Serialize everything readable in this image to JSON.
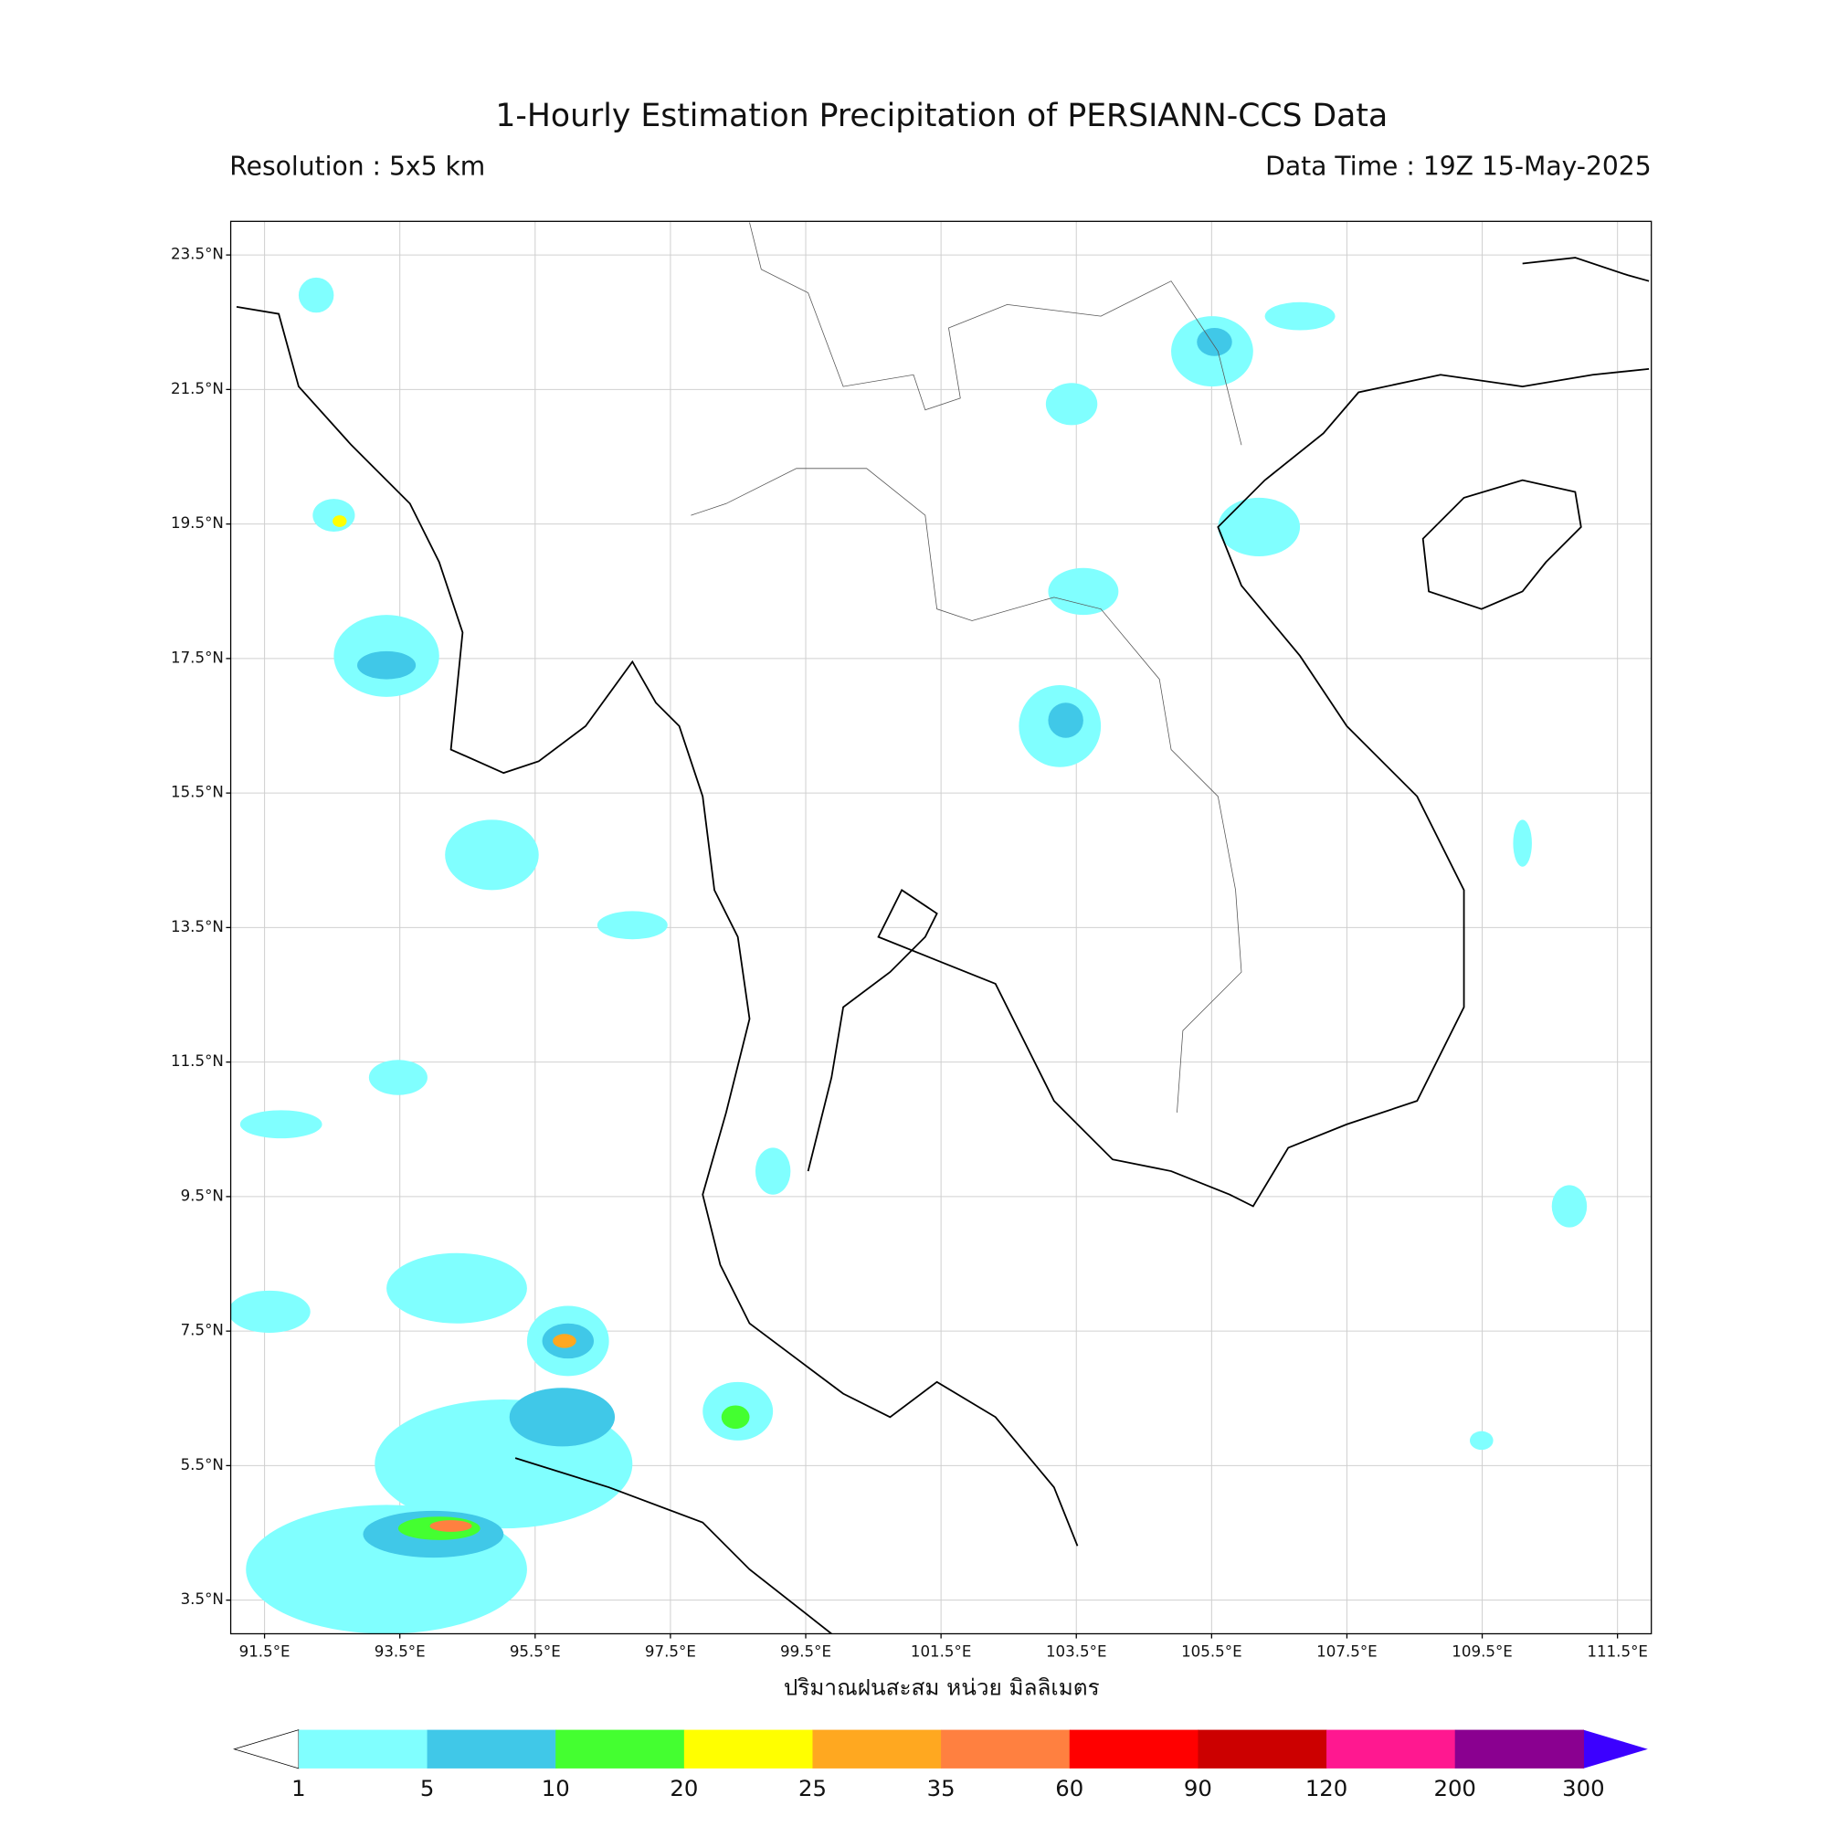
{
  "title": "1-Hourly Estimation Precipitation of PERSIANN-CCS Data",
  "resolution": "Resolution : 5x5 km",
  "data_time": "Data Time : 19Z 15-May-2025",
  "map": {
    "xlim": [
      91,
      112
    ],
    "ylim": [
      3,
      24
    ],
    "grid": true,
    "xticks": [
      {
        "value": 91.5,
        "label": "91.5°E"
      },
      {
        "value": 93.5,
        "label": "93.5°E"
      },
      {
        "value": 95.5,
        "label": "95.5°E"
      },
      {
        "value": 97.5,
        "label": "97.5°E"
      },
      {
        "value": 99.5,
        "label": "99.5°E"
      },
      {
        "value": 101.5,
        "label": "101.5°E"
      },
      {
        "value": 103.5,
        "label": "103.5°E"
      },
      {
        "value": 105.5,
        "label": "105.5°E"
      },
      {
        "value": 107.5,
        "label": "107.5°E"
      },
      {
        "value": 109.5,
        "label": "109.5°E"
      },
      {
        "value": 111.5,
        "label": "111.5°E"
      }
    ],
    "yticks": [
      {
        "value": 23.5,
        "label": "23.5°N"
      },
      {
        "value": 21.5,
        "label": "21.5°N"
      },
      {
        "value": 19.5,
        "label": "19.5°N"
      },
      {
        "value": 17.5,
        "label": "17.5°N"
      },
      {
        "value": 15.5,
        "label": "15.5°N"
      },
      {
        "value": 13.5,
        "label": "13.5°N"
      },
      {
        "value": 11.5,
        "label": "11.5°N"
      },
      {
        "value": 9.5,
        "label": "9.5°N"
      },
      {
        "value": 7.5,
        "label": "7.5°N"
      },
      {
        "value": 5.5,
        "label": "5.5°N"
      },
      {
        "value": 3.5,
        "label": "3.5°N"
      }
    ]
  },
  "axis_label": "ปริมาณฝนสะสม หน่วย มิลลิเมตร",
  "colorbar": {
    "levels": [
      1,
      5,
      10,
      20,
      25,
      35,
      60,
      90,
      120,
      200,
      300
    ],
    "colors": [
      "#80ffff",
      "#40c8e8",
      "#44ff30",
      "#ffff00",
      "#ffa820",
      "#ff8040",
      "#ff0000",
      "#cc0000",
      "#ff1890",
      "#8a0090"
    ],
    "under_color": "#ffffff",
    "over_color": "#3c00ff"
  }
}
